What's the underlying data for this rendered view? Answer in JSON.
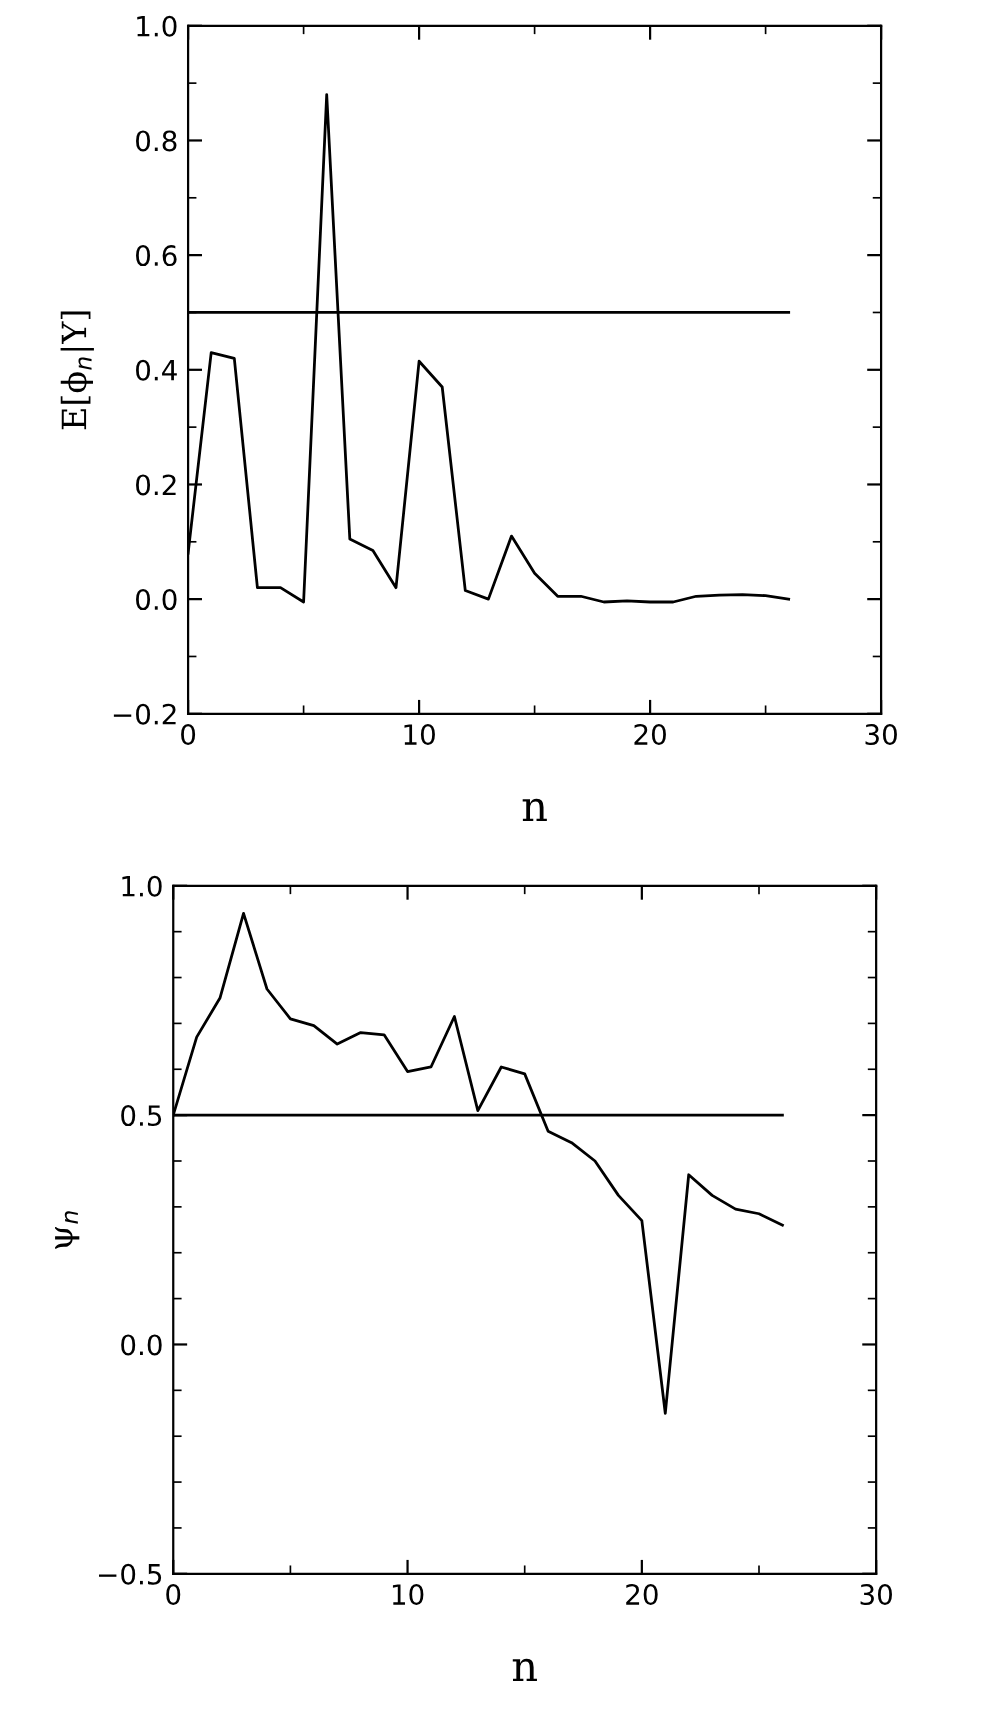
{
  "chart_data": [
    {
      "type": "line",
      "xlabel": "n",
      "ylabel": "E[ϕ$_{n}$|Y]",
      "xlim": [
        0,
        30
      ],
      "xticks": [
        0,
        10,
        20,
        30
      ],
      "ylim": [
        -0.2,
        1.0
      ],
      "yticks": [
        {
          "value": -0.2,
          "label": "−0.2"
        },
        {
          "value": 0.0,
          "label": "0.0"
        },
        {
          "value": 0.2,
          "label": "0.2"
        },
        {
          "value": 0.4,
          "label": "0.4"
        },
        {
          "value": 0.6,
          "label": "0.6"
        },
        {
          "value": 0.8,
          "label": "0.8"
        },
        {
          "value": 1.0,
          "label": "1.0"
        }
      ],
      "grid": false,
      "marker": "none",
      "line_style": "solid",
      "series": [
        {
          "color": "#000000",
          "x": [
            0,
            1,
            2,
            3,
            4,
            5,
            6,
            7,
            8,
            9,
            10,
            11,
            12,
            13,
            14,
            15,
            16,
            17,
            18,
            19,
            20,
            21,
            22,
            23,
            24,
            25,
            26
          ],
          "values": [
            0.08,
            0.43,
            0.42,
            0.02,
            0.02,
            -0.005,
            0.88,
            0.105,
            0.085,
            0.02,
            0.415,
            0.37,
            0.015,
            0.0,
            0.11,
            0.045,
            0.005,
            0.005,
            -0.005,
            -0.003,
            -0.005,
            -0.005,
            0.005,
            0.007,
            0.008,
            0.006,
            0.0
          ]
        },
        {
          "color": "#000000",
          "x": [
            0,
            26
          ],
          "values": [
            0.5,
            0.5
          ]
        }
      ]
    },
    {
      "type": "line",
      "xlabel": "n",
      "ylabel": "ψ$_{n}$",
      "xlim": [
        0,
        30
      ],
      "xticks": [
        0,
        10,
        20,
        30
      ],
      "ylim": [
        -0.5,
        1.0
      ],
      "yticks": [
        {
          "value": -0.5,
          "label": "−0.5"
        },
        {
          "value": 0.0,
          "label": "0.0"
        },
        {
          "value": 0.5,
          "label": "0.5"
        },
        {
          "value": 1.0,
          "label": "1.0"
        }
      ],
      "grid": false,
      "marker": "none",
      "line_style": "solid",
      "series": [
        {
          "color": "#000000",
          "x": [
            0,
            1,
            2,
            3,
            4,
            5,
            6,
            7,
            8,
            9,
            10,
            11,
            12,
            13,
            14,
            15,
            16,
            17,
            18,
            19,
            20,
            21,
            22,
            23,
            24,
            25,
            26
          ],
          "values": [
            0.5,
            0.67,
            0.756,
            0.94,
            0.775,
            0.71,
            0.695,
            0.655,
            0.68,
            0.675,
            0.595,
            0.605,
            0.715,
            0.51,
            0.605,
            0.59,
            0.465,
            0.44,
            0.4,
            0.325,
            0.27,
            -0.15,
            0.37,
            0.325,
            0.295,
            0.285,
            0.26
          ]
        },
        {
          "color": "#000000",
          "x": [
            0,
            26
          ],
          "values": [
            0.5,
            0.5
          ]
        }
      ]
    }
  ]
}
